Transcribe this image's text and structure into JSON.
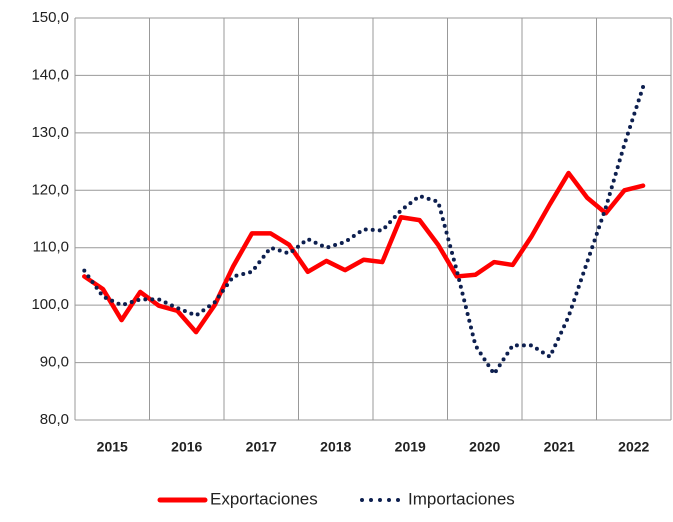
{
  "chart_data": {
    "type": "line",
    "categories": [
      null,
      "2015",
      null,
      null,
      null,
      "2016",
      null,
      null,
      null,
      "2017",
      null,
      null,
      null,
      "2018",
      null,
      null,
      null,
      "2019",
      null,
      null,
      null,
      "2020",
      null,
      null,
      null,
      "2021",
      null,
      null,
      null,
      "2022",
      null
    ],
    "series": [
      {
        "name": "Exportaciones",
        "color": "#ff0000",
        "style": "solid",
        "values": [
          105.0,
          102.8,
          97.4,
          102.3,
          99.9,
          99.0,
          95.3,
          100.0,
          106.8,
          112.5,
          112.5,
          110.5,
          105.8,
          107.7,
          106.1,
          107.9,
          107.5,
          115.3,
          114.8,
          110.5,
          105.0,
          105.3,
          107.5,
          107.0,
          111.9,
          117.6,
          123.0,
          118.7,
          116.0,
          120.0,
          120.8
        ]
      },
      {
        "name": "Importaciones",
        "color": "#0d1f4f",
        "style": "dotted",
        "values": [
          106.0,
          101.5,
          100.0,
          101.0,
          101.0,
          99.5,
          98.2,
          100.5,
          105.0,
          105.8,
          110.0,
          109.0,
          111.5,
          110.0,
          111.0,
          113.2,
          113.0,
          116.5,
          119.0,
          118.0,
          106.0,
          93.0,
          88.0,
          93.0,
          93.0,
          91.0,
          98.0,
          107.5,
          117.0,
          128.0,
          138.0
        ]
      }
    ],
    "ylim": [
      80,
      150
    ],
    "yticks": [
      {
        "value": 80,
        "label": "80,0"
      },
      {
        "value": 90,
        "label": "90,0"
      },
      {
        "value": 100,
        "label": "100,0"
      },
      {
        "value": 110,
        "label": "110,0"
      },
      {
        "value": 120,
        "label": "120,0"
      },
      {
        "value": 130,
        "label": "130,0"
      },
      {
        "value": 140,
        "label": "140,0"
      },
      {
        "value": 150,
        "label": "150,0"
      }
    ],
    "grid": true,
    "legend": "bottom"
  }
}
